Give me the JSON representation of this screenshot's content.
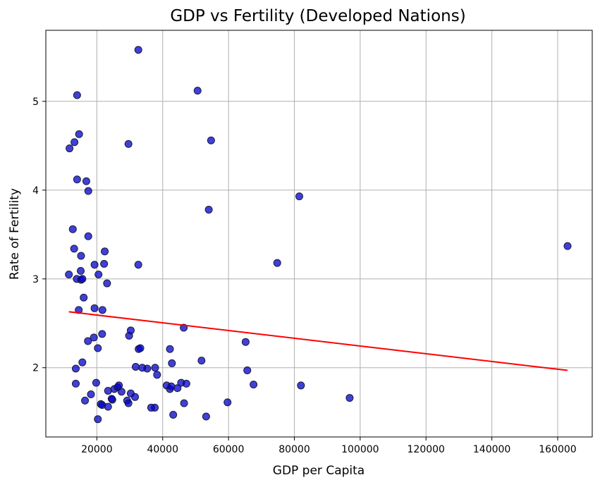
{
  "chart_data": {
    "type": "scatter",
    "title": "GDP vs Fertility (Developed Nations)",
    "xlabel": "GDP per Capita",
    "ylabel": "Rate of Fertility",
    "xlim": [
      4500,
      170500
    ],
    "ylim": [
      1.22,
      5.8
    ],
    "xticks": [
      20000,
      40000,
      60000,
      80000,
      100000,
      120000,
      140000,
      160000
    ],
    "yticks": [
      2,
      3,
      4,
      5
    ],
    "grid": true,
    "colors": {
      "points": "#0000cc",
      "point_edge": "#1a1a3a",
      "trend": "#ff0000",
      "grid": "#b0b0b0"
    },
    "points": [
      {
        "x": 11700,
        "y": 4.47
      },
      {
        "x": 13200,
        "y": 4.54
      },
      {
        "x": 14000,
        "y": 5.07
      },
      {
        "x": 14600,
        "y": 4.63
      },
      {
        "x": 14000,
        "y": 4.12
      },
      {
        "x": 16800,
        "y": 4.1
      },
      {
        "x": 17400,
        "y": 3.99
      },
      {
        "x": 12700,
        "y": 3.56
      },
      {
        "x": 13100,
        "y": 3.34
      },
      {
        "x": 17400,
        "y": 3.48
      },
      {
        "x": 15200,
        "y": 3.26
      },
      {
        "x": 11500,
        "y": 3.05
      },
      {
        "x": 13900,
        "y": 3.0
      },
      {
        "x": 15100,
        "y": 3.09
      },
      {
        "x": 15200,
        "y": 2.99
      },
      {
        "x": 15600,
        "y": 3.0
      },
      {
        "x": 16000,
        "y": 2.79
      },
      {
        "x": 14500,
        "y": 2.65
      },
      {
        "x": 19300,
        "y": 3.16
      },
      {
        "x": 20500,
        "y": 3.05
      },
      {
        "x": 22200,
        "y": 3.17
      },
      {
        "x": 22400,
        "y": 3.31
      },
      {
        "x": 23100,
        "y": 2.95
      },
      {
        "x": 19300,
        "y": 2.67
      },
      {
        "x": 21700,
        "y": 2.65
      },
      {
        "x": 13600,
        "y": 1.99
      },
      {
        "x": 15600,
        "y": 2.06
      },
      {
        "x": 13600,
        "y": 1.82
      },
      {
        "x": 17300,
        "y": 2.3
      },
      {
        "x": 19100,
        "y": 2.34
      },
      {
        "x": 20300,
        "y": 2.22
      },
      {
        "x": 21600,
        "y": 2.38
      },
      {
        "x": 16400,
        "y": 1.63
      },
      {
        "x": 18200,
        "y": 1.7
      },
      {
        "x": 19800,
        "y": 1.83
      },
      {
        "x": 21200,
        "y": 1.59
      },
      {
        "x": 21600,
        "y": 1.58
      },
      {
        "x": 23400,
        "y": 1.74
      },
      {
        "x": 24700,
        "y": 1.64
      },
      {
        "x": 23400,
        "y": 1.56
      },
      {
        "x": 25300,
        "y": 1.76
      },
      {
        "x": 26300,
        "y": 1.78
      },
      {
        "x": 24500,
        "y": 1.65
      },
      {
        "x": 26700,
        "y": 1.8
      },
      {
        "x": 27500,
        "y": 1.73
      },
      {
        "x": 20300,
        "y": 1.42
      },
      {
        "x": 29200,
        "y": 1.63
      },
      {
        "x": 29600,
        "y": 1.6
      },
      {
        "x": 30300,
        "y": 1.71
      },
      {
        "x": 31600,
        "y": 1.67
      },
      {
        "x": 29800,
        "y": 2.36
      },
      {
        "x": 30300,
        "y": 2.42
      },
      {
        "x": 31800,
        "y": 2.01
      },
      {
        "x": 32700,
        "y": 2.21
      },
      {
        "x": 33200,
        "y": 2.22
      },
      {
        "x": 33800,
        "y": 2.0
      },
      {
        "x": 35300,
        "y": 1.99
      },
      {
        "x": 36500,
        "y": 1.55
      },
      {
        "x": 37600,
        "y": 1.55
      },
      {
        "x": 37700,
        "y": 2.0
      },
      {
        "x": 38300,
        "y": 1.92
      },
      {
        "x": 41200,
        "y": 1.8
      },
      {
        "x": 42200,
        "y": 1.76
      },
      {
        "x": 42600,
        "y": 1.79
      },
      {
        "x": 43200,
        "y": 1.47
      },
      {
        "x": 44500,
        "y": 1.77
      },
      {
        "x": 45600,
        "y": 1.83
      },
      {
        "x": 46500,
        "y": 1.6
      },
      {
        "x": 47200,
        "y": 1.82
      },
      {
        "x": 42200,
        "y": 2.21
      },
      {
        "x": 42800,
        "y": 2.05
      },
      {
        "x": 46400,
        "y": 2.45
      },
      {
        "x": 51800,
        "y": 2.08
      },
      {
        "x": 53200,
        "y": 1.45
      },
      {
        "x": 59700,
        "y": 1.61
      },
      {
        "x": 65200,
        "y": 2.29
      },
      {
        "x": 65700,
        "y": 1.97
      },
      {
        "x": 67600,
        "y": 1.81
      },
      {
        "x": 82000,
        "y": 1.8
      },
      {
        "x": 96800,
        "y": 1.66
      },
      {
        "x": 29600,
        "y": 4.52
      },
      {
        "x": 32600,
        "y": 5.58
      },
      {
        "x": 32600,
        "y": 3.16
      },
      {
        "x": 50600,
        "y": 5.12
      },
      {
        "x": 54700,
        "y": 4.56
      },
      {
        "x": 54000,
        "y": 3.78
      },
      {
        "x": 74800,
        "y": 3.18
      },
      {
        "x": 81500,
        "y": 3.93
      },
      {
        "x": 163000,
        "y": 3.37
      }
    ],
    "trendline": {
      "x": [
        11500,
        163000
      ],
      "y": [
        2.63,
        1.97
      ]
    }
  }
}
